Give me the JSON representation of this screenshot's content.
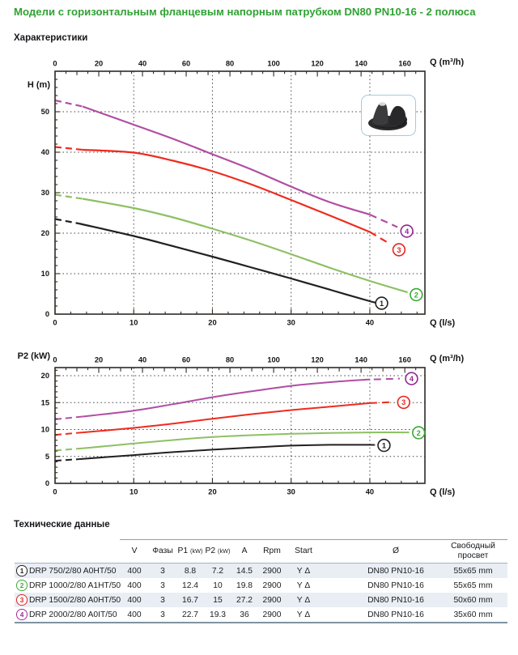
{
  "page": {
    "title": "Модели с горизонтальным фланцевым напорным патрубком DN80 PN10-16 - 2 полюса",
    "section_characteristics": "Характеристики",
    "section_technical": "Технические данные"
  },
  "colors": {
    "title_green": "#2fa233",
    "curve_black": "#231f20",
    "curve_green": "#8dc063",
    "curve_red": "#ee2b1e",
    "curve_purple": "#b14da3",
    "badge_black": "#231f20",
    "badge_green": "#3aaa35",
    "badge_red": "#e8231e",
    "badge_purple": "#92278f",
    "grid": "#4d4d4d",
    "axis": "#2e2a26",
    "table_row_bg": "#e9eef4"
  },
  "icons": {
    "pump_photo": "pump-impeller-image"
  },
  "chart_data": [
    {
      "type": "line",
      "name": "head-flow-curves",
      "y_axis_label": "H (m)",
      "x_top_axis_label": "Q (m³/h)",
      "x_bottom_axis_label": "Q (l/s)",
      "y_ticks": [
        0,
        10,
        20,
        30,
        40,
        50
      ],
      "x_bottom_ticks": [
        0,
        10,
        20,
        30,
        40
      ],
      "x_top_ticks": [
        0,
        20,
        40,
        60,
        80,
        100,
        120,
        140,
        160
      ],
      "y_range": [
        0,
        60
      ],
      "x_range_ls": [
        0,
        47
      ],
      "m3h_per_ls": 3.6,
      "grid_x": [
        10,
        20,
        30,
        40
      ],
      "grid_y": [
        10,
        20,
        30,
        40,
        50
      ],
      "series": [
        {
          "id": "1",
          "color_key": "curve_black",
          "badge_key": "badge_black",
          "lead": [
            [
              0,
              23.5
            ],
            [
              3,
              22.4
            ]
          ],
          "solid": [
            [
              3,
              22.4
            ],
            [
              10,
              19.3
            ],
            [
              15,
              16.8
            ],
            [
              20,
              14.2
            ],
            [
              25,
              11.5
            ],
            [
              30,
              8.8
            ],
            [
              35,
              6.0
            ],
            [
              40,
              3.2
            ],
            [
              40.8,
              2.9
            ]
          ],
          "tail": [],
          "label_at": [
            41.5,
            2.7
          ]
        },
        {
          "id": "2",
          "color_key": "curve_green",
          "badge_key": "badge_green",
          "lead": [
            [
              0,
              29.5
            ],
            [
              3.5,
              28.5
            ]
          ],
          "solid": [
            [
              3.5,
              28.5
            ],
            [
              10,
              26.2
            ],
            [
              15,
              23.9
            ],
            [
              20,
              21.1
            ],
            [
              25,
              18.1
            ],
            [
              30,
              14.8
            ],
            [
              35,
              11.4
            ],
            [
              40,
              8.2
            ],
            [
              44.8,
              5.4
            ]
          ],
          "tail": [],
          "label_at": [
            45.9,
            4.8
          ]
        },
        {
          "id": "3",
          "color_key": "curve_red",
          "badge_key": "badge_red",
          "lead": [
            [
              0,
              41.3
            ],
            [
              3.5,
              40.6
            ]
          ],
          "solid": [
            [
              3.5,
              40.6
            ],
            [
              10,
              39.9
            ],
            [
              15,
              37.9
            ],
            [
              20,
              35.3
            ],
            [
              25,
              32.0
            ],
            [
              30,
              28.2
            ],
            [
              35,
              24.3
            ],
            [
              40,
              20.3
            ]
          ],
          "tail": [
            [
              40,
              20.3
            ],
            [
              42.6,
              17.3
            ]
          ],
          "label_at": [
            43.7,
            15.9
          ]
        },
        {
          "id": "4",
          "color_key": "curve_purple",
          "badge_key": "badge_purple",
          "lead": [
            [
              0,
              52.8
            ],
            [
              3.5,
              51.3
            ]
          ],
          "solid": [
            [
              3.5,
              51.3
            ],
            [
              10,
              46.8
            ],
            [
              15,
              43.3
            ],
            [
              20,
              39.5
            ],
            [
              25,
              35.7
            ],
            [
              30,
              31.5
            ],
            [
              35,
              27.6
            ],
            [
              40,
              24.6
            ]
          ],
          "tail": [
            [
              40,
              24.6
            ],
            [
              43.5,
              21.5
            ]
          ],
          "label_at": [
            44.7,
            20.5
          ]
        }
      ]
    },
    {
      "type": "line",
      "name": "power-p2-curves",
      "y_axis_label": "P2 (kW)",
      "x_top_axis_label": "Q (m³/h)",
      "x_bottom_axis_label": "Q (l/s)",
      "y_ticks": [
        0,
        5,
        10,
        15,
        20
      ],
      "x_bottom_ticks": [
        0,
        10,
        20,
        30,
        40
      ],
      "x_top_ticks": [
        0,
        20,
        40,
        60,
        80,
        100,
        120,
        140,
        160
      ],
      "y_range": [
        0,
        21.5
      ],
      "x_range_ls": [
        0,
        47
      ],
      "m3h_per_ls": 3.6,
      "grid_x": [
        10,
        20,
        30,
        40
      ],
      "grid_y": [
        5,
        10,
        15,
        20
      ],
      "series": [
        {
          "id": "1",
          "color_key": "curve_black",
          "badge_key": "badge_black",
          "lead": [
            [
              0,
              4.2
            ],
            [
              3,
              4.5
            ]
          ],
          "solid": [
            [
              3,
              4.5
            ],
            [
              10,
              5.25
            ],
            [
              15,
              5.8
            ],
            [
              20,
              6.25
            ],
            [
              25,
              6.65
            ],
            [
              30,
              7.0
            ],
            [
              35,
              7.15
            ],
            [
              40,
              7.15
            ],
            [
              40.6,
              7.1
            ]
          ],
          "tail": [],
          "label_at": [
            41.8,
            7.05
          ]
        },
        {
          "id": "2",
          "color_key": "curve_green",
          "badge_key": "badge_green",
          "lead": [
            [
              0,
              6.1
            ],
            [
              3.5,
              6.5
            ]
          ],
          "solid": [
            [
              3.5,
              6.5
            ],
            [
              10,
              7.4
            ],
            [
              15,
              8.05
            ],
            [
              20,
              8.6
            ],
            [
              25,
              8.95
            ],
            [
              30,
              9.2
            ],
            [
              35,
              9.35
            ],
            [
              40,
              9.45
            ],
            [
              45,
              9.45
            ]
          ],
          "tail": [],
          "label_at": [
            46.2,
            9.4
          ]
        },
        {
          "id": "3",
          "color_key": "curve_red",
          "badge_key": "badge_red",
          "lead": [
            [
              0,
              9.0
            ],
            [
              3.5,
              9.45
            ]
          ],
          "solid": [
            [
              3.5,
              9.45
            ],
            [
              10,
              10.3
            ],
            [
              15,
              11.1
            ],
            [
              20,
              12.0
            ],
            [
              25,
              12.85
            ],
            [
              30,
              13.6
            ],
            [
              35,
              14.25
            ],
            [
              40,
              14.9
            ]
          ],
          "tail": [
            [
              40,
              14.9
            ],
            [
              42.9,
              15.1
            ]
          ],
          "label_at": [
            44.3,
            15.05
          ]
        },
        {
          "id": "4",
          "color_key": "curve_purple",
          "badge_key": "badge_purple",
          "lead": [
            [
              0,
              11.9
            ],
            [
              3.5,
              12.4
            ]
          ],
          "solid": [
            [
              3.5,
              12.4
            ],
            [
              10,
              13.5
            ],
            [
              15,
              14.7
            ],
            [
              20,
              16.0
            ],
            [
              25,
              17.1
            ],
            [
              30,
              18.1
            ],
            [
              35,
              18.8
            ],
            [
              40,
              19.3
            ]
          ],
          "tail": [
            [
              40.5,
              19.3
            ],
            [
              43.8,
              19.45
            ]
          ],
          "label_at": [
            45.3,
            19.45
          ]
        }
      ]
    }
  ],
  "table": {
    "headers": {
      "v": "V",
      "phases": "Фазы",
      "p1": "P1",
      "p1_unit": "(kW)",
      "p2": "P2",
      "p2_unit": "(kW)",
      "a": "A",
      "rpm": "Rpm",
      "start": "Start",
      "dn": "Ø",
      "clearance": "Свободный просвет"
    },
    "rows": [
      {
        "num": "1",
        "color": "#231f20",
        "model": "DRP 750/2/80 A0HT/50",
        "v": "400",
        "phases": "3",
        "p1": "8.8",
        "p2": "7.2",
        "a": "14.5",
        "rpm": "2900",
        "start": "Y Δ",
        "dn": "DN80 PN10-16",
        "clearance": "55x65 mm"
      },
      {
        "num": "2",
        "color": "#3aaa35",
        "model": "DRP 1000/2/80 A1HT/50",
        "v": "400",
        "phases": "3",
        "p1": "12.4",
        "p2": "10",
        "a": "19.8",
        "rpm": "2900",
        "start": "Y Δ",
        "dn": "DN80 PN10-16",
        "clearance": "55x65 mm"
      },
      {
        "num": "3",
        "color": "#e8231e",
        "model": "DRP 1500/2/80 A0HT/50",
        "v": "400",
        "phases": "3",
        "p1": "16.7",
        "p2": "15",
        "a": "27.2",
        "rpm": "2900",
        "start": "Y Δ",
        "dn": "DN80 PN10-16",
        "clearance": "50x60 mm"
      },
      {
        "num": "4",
        "color": "#a0299b",
        "model": "DRP 2000/2/80 A0IT/50",
        "v": "400",
        "phases": "3",
        "p1": "22.7",
        "p2": "19.3",
        "a": "36",
        "rpm": "2900",
        "start": "Y Δ",
        "dn": "DN80 PN10-16",
        "clearance": "35x60 mm"
      }
    ]
  }
}
